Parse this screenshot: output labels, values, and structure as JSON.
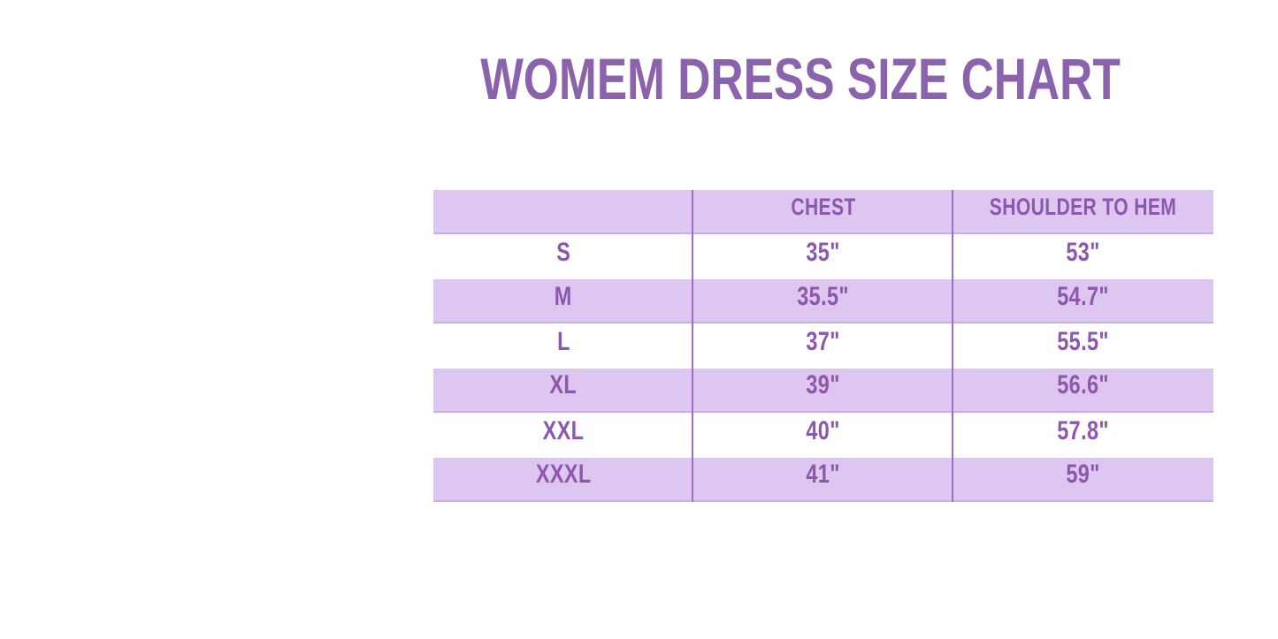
{
  "page": {
    "title": "WOMEM DRESS SIZE CHART"
  },
  "chart_data": {
    "type": "table",
    "title": "WOMEM DRESS SIZE CHART",
    "columns": [
      "",
      "CHEST",
      "SHOULDER TO HEM"
    ],
    "rows": [
      [
        "S",
        "35\"",
        "53\""
      ],
      [
        "M",
        "35.5\"",
        "54.7\""
      ],
      [
        "L",
        "37\"",
        "55.5\""
      ],
      [
        "XL",
        "39\"",
        "56.6\""
      ],
      [
        "XXL",
        "40\"",
        "57.8\""
      ],
      [
        "XXXL",
        "41\"",
        "59\""
      ]
    ],
    "layout": {
      "striped": true,
      "stripe_rows": [
        "header",
        "M",
        "XL",
        "XXXL"
      ],
      "legend": "none",
      "grid": "vertical-dividers-only"
    }
  },
  "colors": {
    "background": "#ffffff",
    "title_text": "#8a63ac",
    "table_text": "#8c57ac",
    "stripe": "#ddc6ef",
    "stripe_edge": "#cbade5",
    "divider": "#9d6fc2"
  }
}
